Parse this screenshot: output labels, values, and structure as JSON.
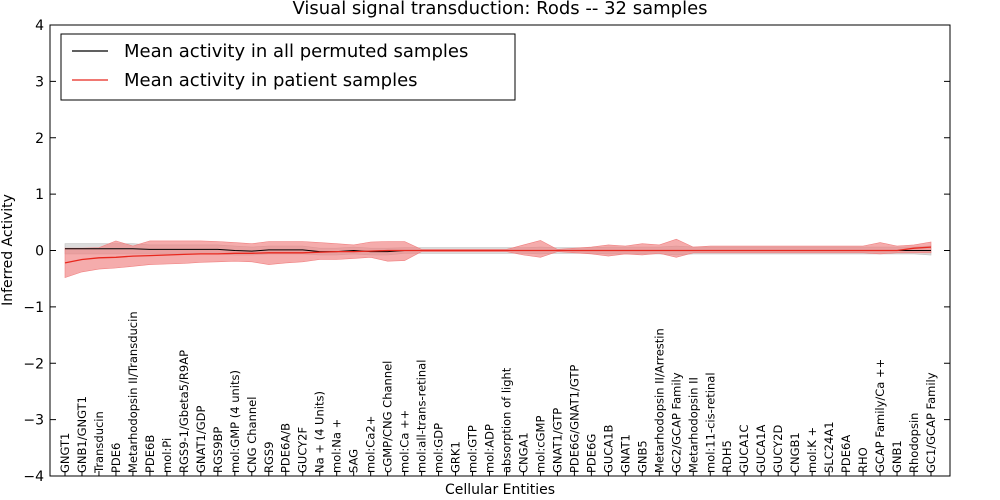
{
  "colors": {
    "permuted_line": "#000000",
    "permuted_band": "#bfbfbf",
    "patient_line": "#e8281e",
    "patient_band": "#f08080",
    "axes": "#000000",
    "background": "#ffffff"
  },
  "chart_data": {
    "type": "line",
    "title": "Visual signal transduction: Rods -- 32 samples",
    "xlabel": "Cellular Entities",
    "ylabel": "Inferred Activity",
    "ylim": [
      -4,
      4
    ],
    "yticks": [
      -4,
      -3,
      -2,
      -1,
      0,
      1,
      2,
      3,
      4
    ],
    "ytick_labels": [
      "−4",
      "−3",
      "−2",
      "−1",
      "0",
      "1",
      "2",
      "3",
      "4"
    ],
    "legend_position": "top-left",
    "categories": [
      "GNGT1",
      "GNB1/GNGT1",
      "Transducin",
      "PDE6",
      "Metarhodopsin II/Transducin",
      "PDE6B",
      "mol:Pi",
      "RGS9-1/Gbeta5/R9AP",
      "GNAT1/GDP",
      "RGS9BP",
      "mol:GMP (4 units)",
      "CNG Channel",
      "RGS9",
      "PDE6A/B",
      "GUCY2F",
      "Na + (4 Units)",
      "mol:Na +",
      "SAG",
      "mol:Ca2+",
      "cGMP/CNG Channel",
      "mol:Ca ++",
      "mol:all-trans-retinal",
      "mol:GDP",
      "GRK1",
      "mol:GTP",
      "mol:ADP",
      "absorption of light",
      "CNGA1",
      "mol:cGMP",
      "GNAT1/GTP",
      "PDE6G/GNAT1/GTP",
      "PDE6G",
      "GUCA1B",
      "GNAT1",
      "GNB5",
      "Metarhodopsin II/Arrestin",
      "GC2/GCAP Family",
      "Metarhodopsin II",
      "mol:11-cis-retinal",
      "RDH5",
      "GUCA1C",
      "GUCA1A",
      "GUCY2D",
      "CNGB1",
      "mol:K +",
      "SLC24A1",
      "PDE6A",
      "RHO",
      "GCAP Family/Ca ++",
      "GNB1",
      "Rhodopsin",
      "GC1/GCAP Family"
    ],
    "series": [
      {
        "name": "Mean activity in all permuted samples",
        "color": "#000000",
        "values": [
          0.03,
          0.03,
          0.03,
          0.03,
          0.03,
          0.02,
          0.02,
          0.02,
          0.02,
          0.02,
          0.0,
          -0.01,
          0.01,
          0.01,
          0.01,
          -0.02,
          -0.02,
          0.0,
          -0.02,
          -0.02,
          0.0,
          0.0,
          0.0,
          0.0,
          0.0,
          0.0,
          0.0,
          0.0,
          0.0,
          0.0,
          0.0,
          0.0,
          0.0,
          0.0,
          0.0,
          0.0,
          0.0,
          0.0,
          0.0,
          0.0,
          0.0,
          0.0,
          0.0,
          0.0,
          0.0,
          0.0,
          0.0,
          0.0,
          0.0,
          0.0,
          0.0,
          0.0
        ],
        "lower": [
          -0.06,
          -0.06,
          -0.06,
          -0.06,
          -0.06,
          -0.06,
          -0.06,
          -0.06,
          -0.06,
          -0.06,
          -0.08,
          -0.08,
          -0.06,
          -0.06,
          -0.06,
          -0.08,
          -0.08,
          -0.06,
          -0.08,
          -0.08,
          -0.05,
          -0.05,
          -0.05,
          -0.05,
          -0.05,
          -0.05,
          -0.05,
          -0.05,
          -0.06,
          -0.05,
          -0.05,
          -0.05,
          -0.06,
          -0.06,
          -0.06,
          -0.06,
          -0.08,
          -0.06,
          -0.06,
          -0.06,
          -0.06,
          -0.06,
          -0.06,
          -0.06,
          -0.06,
          -0.06,
          -0.06,
          -0.06,
          -0.06,
          -0.06,
          -0.06,
          -0.08
        ],
        "upper": [
          0.12,
          0.12,
          0.12,
          0.12,
          0.12,
          0.1,
          0.1,
          0.1,
          0.1,
          0.1,
          0.08,
          0.06,
          0.08,
          0.08,
          0.08,
          0.04,
          0.04,
          0.06,
          0.04,
          0.04,
          0.05,
          0.05,
          0.05,
          0.05,
          0.05,
          0.05,
          0.05,
          0.05,
          0.06,
          0.05,
          0.05,
          0.05,
          0.06,
          0.06,
          0.06,
          0.06,
          0.08,
          0.06,
          0.06,
          0.06,
          0.06,
          0.06,
          0.06,
          0.06,
          0.06,
          0.06,
          0.06,
          0.06,
          0.06,
          0.06,
          0.06,
          0.08
        ]
      },
      {
        "name": "Mean activity in patient samples",
        "color": "#e8281e",
        "values": [
          -0.22,
          -0.16,
          -0.13,
          -0.12,
          -0.1,
          -0.09,
          -0.08,
          -0.07,
          -0.06,
          -0.06,
          -0.05,
          -0.05,
          -0.04,
          -0.04,
          -0.04,
          -0.03,
          -0.02,
          -0.02,
          -0.01,
          0.0,
          0.0,
          0.0,
          0.0,
          0.0,
          0.0,
          0.0,
          0.0,
          0.0,
          0.0,
          0.0,
          0.0,
          0.0,
          0.0,
          0.0,
          0.0,
          0.0,
          0.0,
          0.0,
          0.0,
          0.0,
          0.0,
          0.0,
          0.0,
          0.0,
          0.0,
          0.0,
          0.0,
          0.0,
          0.0,
          0.0,
          0.04,
          0.06
        ],
        "lower": [
          -0.48,
          -0.38,
          -0.33,
          -0.31,
          -0.28,
          -0.25,
          -0.24,
          -0.23,
          -0.21,
          -0.2,
          -0.19,
          -0.2,
          -0.25,
          -0.22,
          -0.2,
          -0.16,
          -0.16,
          -0.14,
          -0.12,
          -0.19,
          -0.18,
          -0.02,
          -0.02,
          -0.02,
          -0.02,
          -0.02,
          -0.02,
          -0.08,
          -0.12,
          -0.02,
          -0.04,
          -0.06,
          -0.1,
          -0.06,
          -0.08,
          -0.05,
          -0.12,
          -0.04,
          -0.04,
          -0.04,
          -0.04,
          -0.04,
          -0.04,
          -0.04,
          -0.04,
          -0.04,
          -0.04,
          -0.04,
          -0.06,
          -0.04,
          -0.04,
          -0.04
        ],
        "upper": [
          0.04,
          0.04,
          0.05,
          0.17,
          0.08,
          0.17,
          0.17,
          0.17,
          0.17,
          0.16,
          0.14,
          0.12,
          0.16,
          0.16,
          0.16,
          0.14,
          0.12,
          0.1,
          0.15,
          0.16,
          0.16,
          0.02,
          0.02,
          0.02,
          0.02,
          0.02,
          0.02,
          0.1,
          0.18,
          0.02,
          0.04,
          0.06,
          0.1,
          0.08,
          0.12,
          0.1,
          0.2,
          0.06,
          0.08,
          0.08,
          0.08,
          0.08,
          0.08,
          0.08,
          0.08,
          0.08,
          0.08,
          0.08,
          0.14,
          0.08,
          0.1,
          0.15
        ]
      }
    ]
  }
}
